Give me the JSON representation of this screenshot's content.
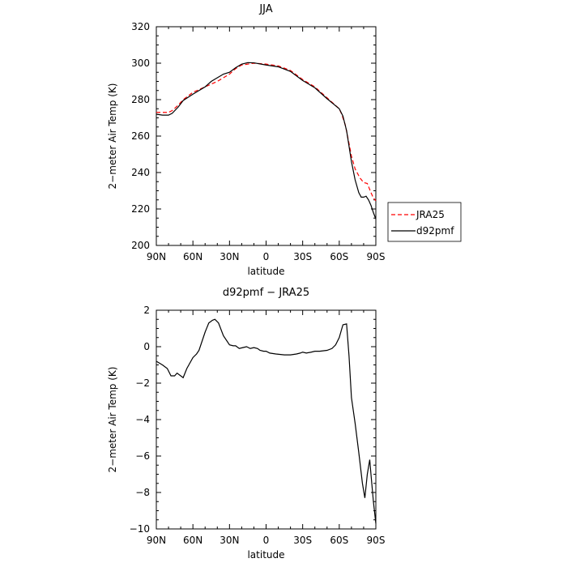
{
  "chart_data": [
    {
      "type": "line",
      "title": "JJA",
      "xlabel": "latitude",
      "ylabel": "2−meter Air Temp (K)",
      "xlim": [
        90,
        -90
      ],
      "ylim": [
        200,
        320
      ],
      "xticks": [
        {
          "value": 90,
          "label": "90N"
        },
        {
          "value": 60,
          "label": "60N"
        },
        {
          "value": 30,
          "label": "30N"
        },
        {
          "value": 0,
          "label": "0"
        },
        {
          "value": -30,
          "label": "30S"
        },
        {
          "value": -60,
          "label": "60S"
        },
        {
          "value": -90,
          "label": "90S"
        }
      ],
      "yticks": [
        200,
        220,
        240,
        260,
        280,
        300,
        320
      ],
      "legend_position": "right, outside the plot",
      "series": [
        {
          "name": "JRA25",
          "color": "#ff0000",
          "dash": "dashed",
          "points": [
            [
              90,
              273
            ],
            [
              85,
              273
            ],
            [
              80,
              273
            ],
            [
              77,
              274
            ],
            [
              72,
              277
            ],
            [
              68,
              280
            ],
            [
              60,
              284
            ],
            [
              50,
              287
            ],
            [
              40,
              290
            ],
            [
              30,
              294
            ],
            [
              25,
              297
            ],
            [
              20,
              299
            ],
            [
              10,
              300
            ],
            [
              0,
              299.5
            ],
            [
              -10,
              298.5
            ],
            [
              -20,
              296
            ],
            [
              -30,
              291
            ],
            [
              -40,
              287
            ],
            [
              -50,
              281
            ],
            [
              -60,
              275
            ],
            [
              -62,
              272
            ],
            [
              -65,
              266
            ],
            [
              -68,
              256
            ],
            [
              -70,
              249
            ],
            [
              -73,
              242
            ],
            [
              -77,
              237
            ],
            [
              -80,
              234.5
            ],
            [
              -83,
              234
            ],
            [
              -86,
              229
            ],
            [
              -88,
              226
            ],
            [
              -90,
              224.5
            ]
          ]
        },
        {
          "name": "d92pmf",
          "color": "#000000",
          "dash": "solid",
          "points": [
            [
              90,
              272
            ],
            [
              85,
              271.5
            ],
            [
              80,
              271.5
            ],
            [
              77,
              272.5
            ],
            [
              72,
              276
            ],
            [
              68,
              279.5
            ],
            [
              60,
              283
            ],
            [
              50,
              287
            ],
            [
              45,
              290
            ],
            [
              40,
              292
            ],
            [
              35,
              294
            ],
            [
              30,
              295
            ],
            [
              25,
              297.5
            ],
            [
              20,
              299.5
            ],
            [
              15,
              300.3
            ],
            [
              10,
              300.2
            ],
            [
              0,
              299
            ],
            [
              -10,
              298
            ],
            [
              -20,
              295.5
            ],
            [
              -30,
              290.5
            ],
            [
              -40,
              286.5
            ],
            [
              -50,
              280.5
            ],
            [
              -60,
              275
            ],
            [
              -63,
              271
            ],
            [
              -66,
              263
            ],
            [
              -70,
              246
            ],
            [
              -73,
              236
            ],
            [
              -76,
              229
            ],
            [
              -78,
              226.5
            ],
            [
              -80,
              226.5
            ],
            [
              -82,
              227
            ],
            [
              -84,
              225
            ],
            [
              -86,
              222
            ],
            [
              -88,
              218
            ],
            [
              -90,
              214.5
            ]
          ]
        }
      ]
    },
    {
      "type": "line",
      "title": "d92pmf − JRA25",
      "xlabel": "latitude",
      "ylabel": "2−meter Air Temp (K)",
      "xlim": [
        90,
        -90
      ],
      "ylim": [
        -10,
        2
      ],
      "xticks": [
        {
          "value": 90,
          "label": "90N"
        },
        {
          "value": 60,
          "label": "60N"
        },
        {
          "value": 30,
          "label": "30N"
        },
        {
          "value": 0,
          "label": "0"
        },
        {
          "value": -30,
          "label": "30S"
        },
        {
          "value": -60,
          "label": "60S"
        },
        {
          "value": -90,
          "label": "90S"
        }
      ],
      "yticks": [
        -10,
        -8,
        -6,
        -4,
        -2,
        0,
        2
      ],
      "series": [
        {
          "color": "#000000",
          "dash": "solid",
          "points": [
            [
              90,
              -0.8
            ],
            [
              85,
              -1.0
            ],
            [
              81,
              -1.2
            ],
            [
              78,
              -1.6
            ],
            [
              75,
              -1.6
            ],
            [
              73,
              -1.45
            ],
            [
              70,
              -1.6
            ],
            [
              68,
              -1.7
            ],
            [
              65,
              -1.2
            ],
            [
              60,
              -0.6
            ],
            [
              57,
              -0.4
            ],
            [
              55,
              -0.2
            ],
            [
              50,
              0.8
            ],
            [
              47,
              1.3
            ],
            [
              44,
              1.45
            ],
            [
              42,
              1.5
            ],
            [
              39,
              1.3
            ],
            [
              35,
              0.6
            ],
            [
              30,
              0.1
            ],
            [
              27,
              0.05
            ],
            [
              25,
              0.05
            ],
            [
              22,
              -0.1
            ],
            [
              19,
              -0.05
            ],
            [
              16,
              0.0
            ],
            [
              13,
              -0.1
            ],
            [
              10,
              -0.05
            ],
            [
              7,
              -0.1
            ],
            [
              5,
              -0.2
            ],
            [
              2,
              -0.25
            ],
            [
              0,
              -0.25
            ],
            [
              -3,
              -0.35
            ],
            [
              -8,
              -0.4
            ],
            [
              -15,
              -0.45
            ],
            [
              -20,
              -0.45
            ],
            [
              -25,
              -0.4
            ],
            [
              -28,
              -0.35
            ],
            [
              -30,
              -0.3
            ],
            [
              -33,
              -0.35
            ],
            [
              -37,
              -0.3
            ],
            [
              -40,
              -0.25
            ],
            [
              -44,
              -0.25
            ],
            [
              -50,
              -0.2
            ],
            [
              -54,
              -0.1
            ],
            [
              -57,
              0.1
            ],
            [
              -60,
              0.5
            ],
            [
              -63,
              1.2
            ],
            [
              -66,
              1.25
            ],
            [
              -68,
              -0.5
            ],
            [
              -70,
              -2.8
            ],
            [
              -73,
              -4.2
            ],
            [
              -76,
              -5.8
            ],
            [
              -79,
              -7.5
            ],
            [
              -81,
              -8.3
            ],
            [
              -83,
              -7.0
            ],
            [
              -85,
              -6.2
            ],
            [
              -86,
              -7.0
            ],
            [
              -88,
              -8.5
            ],
            [
              -90,
              -9.7
            ]
          ]
        }
      ]
    }
  ]
}
